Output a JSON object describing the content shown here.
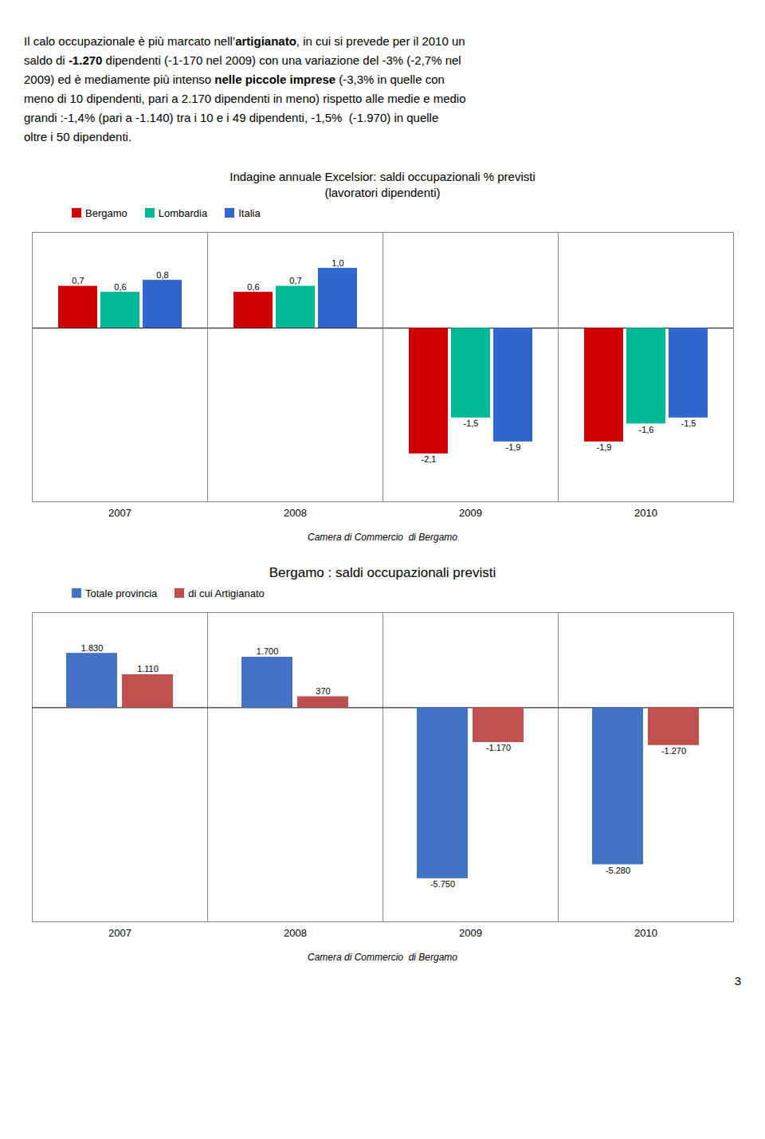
{
  "page_number": "3",
  "paragraph": [
    [
      {
        "text": "Il calo occupazionale è più marcato nell’",
        "bold": false
      },
      {
        "text": "artigianato",
        "bold": true
      },
      {
        "text": ", in cui si prevede per il 2010 un",
        "bold": false
      }
    ],
    [
      {
        "text": "saldo di ",
        "bold": false
      },
      {
        "text": "-1.270",
        "bold": true
      },
      {
        "text": " dipendenti (-1-170 nel 2009) con una variazione del -3% (-2,7% nel",
        "bold": false
      }
    ],
    [
      {
        "text": "2009) ed è mediamente più intenso ",
        "bold": false
      },
      {
        "text": "nelle piccole imprese",
        "bold": true
      },
      {
        "text": " (-3,3% in quelle con",
        "bold": false
      }
    ],
    [
      {
        "text": "meno di 10 dipendenti, pari a 2.170 dipendenti in meno) rispetto alle medie e medio",
        "bold": false
      }
    ],
    [
      {
        "text": "grandi :-1,4% (pari a -1.140) tra i 10 e i 49 dipendenti, -1,5%  (-1.970) in quelle",
        "bold": false
      }
    ],
    [
      {
        "text": "oltre i 50 dipendenti.",
        "bold": false
      }
    ]
  ],
  "chart_data": [
    {
      "type": "bar",
      "title": "Indagine annuale Excelsior: saldi occupazionali % previsti",
      "subtitle": "(lavoratori dipendenti)",
      "categories": [
        "2007",
        "2008",
        "2009",
        "2010"
      ],
      "series": [
        {
          "name": "Bergamo",
          "color": "#cc0000",
          "values": [
            0.7,
            0.6,
            -2.1,
            -1.9
          ],
          "value_labels": [
            "0,7",
            "0,6",
            "-2,1",
            "-1,9"
          ]
        },
        {
          "name": "Lombardia",
          "color": "#00b894",
          "values": [
            0.6,
            0.7,
            -1.5,
            -1.6
          ],
          "value_labels": [
            "0,6",
            "0,7",
            "-1,5",
            "-1,6"
          ]
        },
        {
          "name": "Italia",
          "color": "#3366cc",
          "values": [
            0.8,
            1.0,
            -1.9,
            -1.5
          ],
          "value_labels": [
            "0,8",
            "1,0",
            "-1,9",
            "-1,5"
          ]
        }
      ],
      "ylim": [
        -2.9,
        1.6
      ],
      "tick_labels": "x",
      "grid": false,
      "legend": "upper left",
      "data_labels": true,
      "annotations": [
        "Camera di Commercio  di Bergamo"
      ]
    },
    {
      "type": "bar",
      "title": "Bergamo : saldi occupazionali previsti",
      "categories": [
        "2007",
        "2008",
        "2009",
        "2010"
      ],
      "series": [
        {
          "name": "Totale provincia",
          "color": "#4472c4",
          "values": [
            1830,
            1700,
            -5750,
            -5280
          ],
          "value_labels": [
            "1.830",
            "1.700",
            "-5.750",
            "-5.280"
          ]
        },
        {
          "name": "di cui Artigianato",
          "color": "#c0504d",
          "values": [
            1110,
            370,
            -1170,
            -1270
          ],
          "value_labels": [
            "1.110",
            "370",
            "-1.170",
            "-1.270"
          ]
        }
      ],
      "ylim": [
        -7200,
        3200
      ],
      "tick_labels": "x",
      "grid": false,
      "legend": "upper left",
      "data_labels": true,
      "annotations": [
        "Camera di Commercio  di Bergamo"
      ]
    }
  ]
}
